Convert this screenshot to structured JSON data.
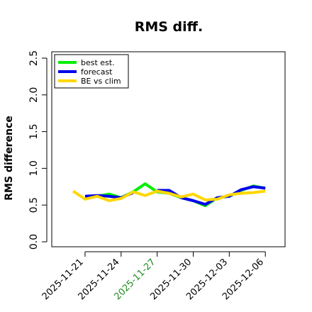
{
  "chart_data": {
    "type": "line",
    "title": "RMS diff.",
    "xlabel": "",
    "ylabel": "RMS difference",
    "ylim": [
      0,
      2.5
    ],
    "yticks": [
      "0.0",
      "0.5",
      "1.0",
      "1.5",
      "2.0",
      "2.5"
    ],
    "x": [
      "2025-11-20",
      "2025-11-21",
      "2025-11-22",
      "2025-11-23",
      "2025-11-24",
      "2025-11-25",
      "2025-11-26",
      "2025-11-27",
      "2025-11-28",
      "2025-11-29",
      "2025-11-30",
      "2025-12-01",
      "2025-12-02",
      "2025-12-03",
      "2025-12-04",
      "2025-12-05",
      "2025-12-06"
    ],
    "xticks": [
      {
        "label": "2025-11-21",
        "color": "#000000"
      },
      {
        "label": "2025-11-24",
        "color": "#000000"
      },
      {
        "label": "2025-11-27",
        "color": "#228b22"
      },
      {
        "label": "2025-11-30",
        "color": "#000000"
      },
      {
        "label": "2025-12-03",
        "color": "#000000"
      },
      {
        "label": "2025-12-06",
        "color": "#000000"
      }
    ],
    "legend_position": "top-left",
    "grid": false,
    "series": [
      {
        "name": "best est.",
        "color": "#00ee00",
        "values": [
          null,
          0.61,
          0.62,
          0.65,
          0.6,
          0.68,
          0.79,
          0.68,
          0.66,
          0.6,
          0.56,
          0.49,
          0.6,
          0.62,
          0.7,
          0.76,
          0.73
        ]
      },
      {
        "name": "forecast",
        "color": "#0000ee",
        "values": [
          null,
          0.62,
          0.63,
          0.62,
          0.6,
          0.67,
          null,
          0.7,
          0.7,
          0.6,
          0.56,
          0.51,
          0.6,
          0.62,
          0.71,
          0.75,
          0.73
        ]
      },
      {
        "name": "BE vs clim",
        "color": "#ffd700",
        "values": [
          0.69,
          0.58,
          0.62,
          0.56,
          0.59,
          0.68,
          0.63,
          0.69,
          0.66,
          0.61,
          0.65,
          0.57,
          0.58,
          0.64,
          0.66,
          0.67,
          0.69
        ]
      }
    ]
  }
}
